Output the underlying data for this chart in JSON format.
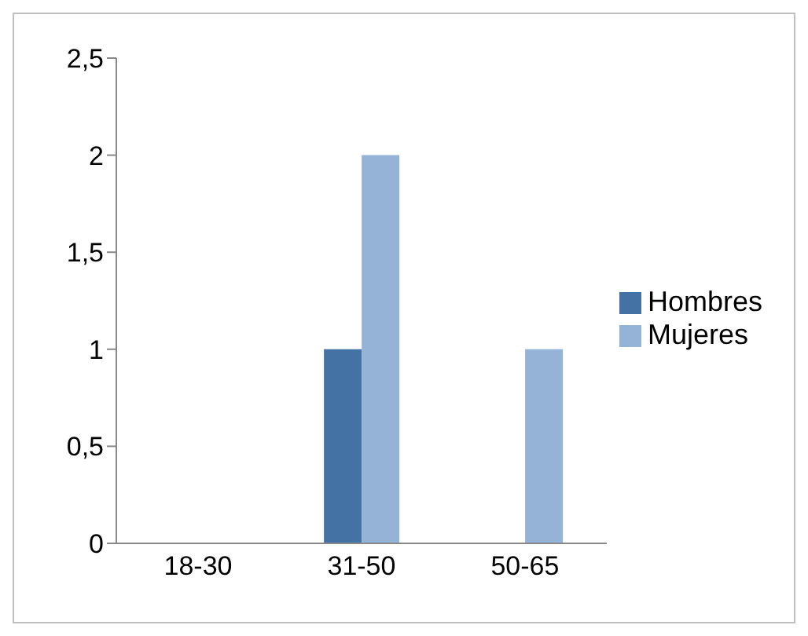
{
  "chart_data": {
    "type": "bar",
    "categories": [
      "18-30",
      "31-50",
      "50-65"
    ],
    "series": [
      {
        "name": "Hombres",
        "color": "#4472a4",
        "values": [
          0,
          1,
          0
        ]
      },
      {
        "name": "Mujeres",
        "color": "#95b3d7",
        "values": [
          0,
          2,
          1
        ]
      }
    ],
    "ylim": [
      0,
      2.5
    ],
    "yticks": [
      0,
      {
        "value": 0.5,
        "label": "0,5"
      },
      1,
      {
        "value": 1.5,
        "label": "1,5"
      },
      2,
      {
        "value": 2.5,
        "label": "2,5"
      }
    ],
    "grid": false,
    "legend": "right"
  }
}
